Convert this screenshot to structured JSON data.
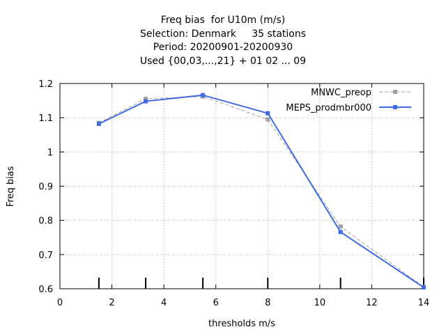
{
  "chart_data": {
    "type": "line",
    "title_lines": [
      "Freq bias  for U10m (m/s)",
      "Selection: Denmark     35 stations",
      "Period: 20200901-20200930",
      "Used {00,03,...,21} + 01 02 ... 09"
    ],
    "xlabel": "thresholds m/s",
    "ylabel": "Freq bias",
    "xlim": [
      0,
      14
    ],
    "ylim": [
      0.6,
      1.2
    ],
    "xticks": [
      "0",
      "2",
      "4",
      "6",
      "8",
      "10",
      "12",
      "14"
    ],
    "yticks": [
      "0.6",
      "0.7",
      "0.8",
      "0.9",
      "1",
      "1.1",
      "1.2"
    ],
    "grid": true,
    "legend_position": "top-right",
    "threshold_markers": [
      1.5,
      3.3,
      5.5,
      8,
      10.8,
      14
    ],
    "series": [
      {
        "name": "MNWC_preop",
        "color": "#a0a0a0",
        "style": "dashed",
        "x": [
          1.5,
          3.3,
          5.5,
          8,
          10.8,
          14
        ],
        "y": [
          1.085,
          1.155,
          1.162,
          1.095,
          0.782,
          0.605
        ]
      },
      {
        "name": "MEPS_prodmbr000",
        "color": "#4169e1",
        "style": "solid",
        "x": [
          1.5,
          3.3,
          5.5,
          8,
          10.8,
          14
        ],
        "y": [
          1.082,
          1.148,
          1.166,
          1.113,
          0.766,
          0.604
        ]
      }
    ]
  }
}
